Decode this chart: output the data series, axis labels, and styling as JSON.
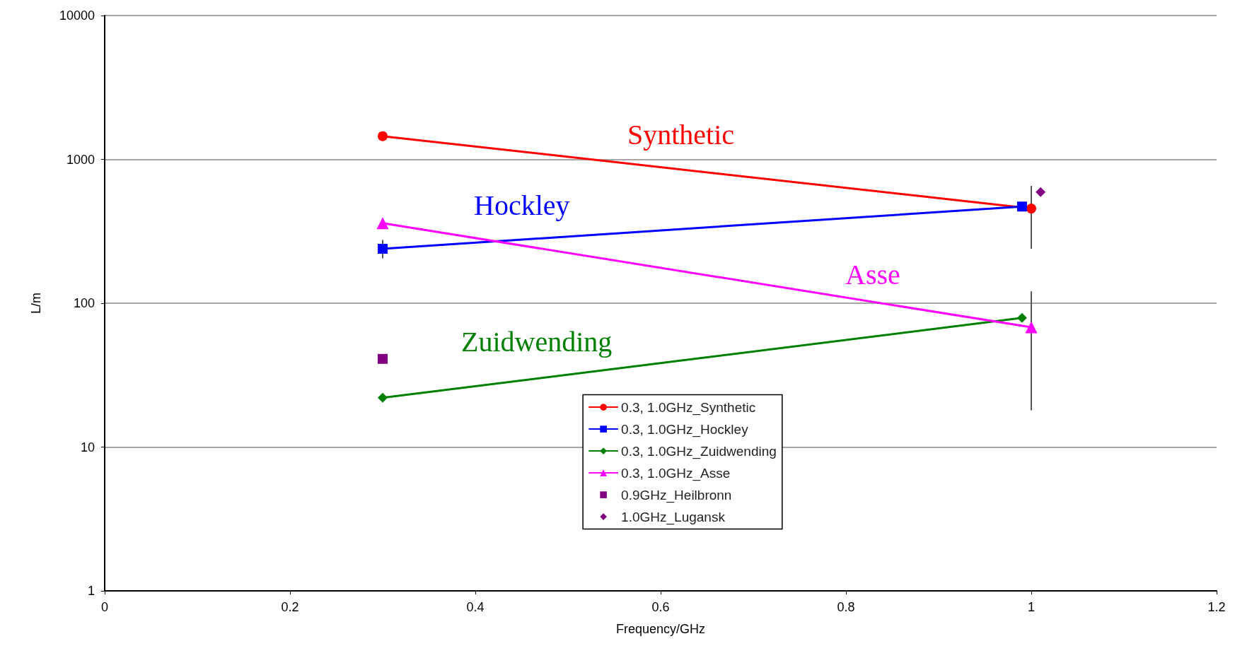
{
  "chart_data": {
    "type": "line",
    "xlabel": "Frequency/GHz",
    "ylabel": "L/m",
    "xlim": [
      0,
      1.2
    ],
    "xticks": [
      0,
      0.2,
      0.4,
      0.6,
      0.8,
      1,
      1.2
    ],
    "ylim": [
      1,
      10000
    ],
    "yticks": [
      1,
      10,
      100,
      1000,
      10000
    ],
    "log": "y",
    "grid": "y",
    "legend": "bottom",
    "line_style": "solid",
    "series": [
      {
        "name": "0.3, 1.0GHz_Synthetic",
        "color": "#ff0000",
        "marker": "circle",
        "x": [
          0.3,
          1.0
        ],
        "values": [
          1450,
          455
        ],
        "errors": [
          null,
          [
            239,
            655
          ]
        ]
      },
      {
        "name": "0.3, 1.0GHz_Hockley",
        "color": "#0000ff",
        "marker": "square",
        "x": [
          0.3,
          0.99
        ],
        "values": [
          239,
          470
        ],
        "errors": [
          [
            205,
            275
          ],
          null
        ]
      },
      {
        "name": "0.3, 1.0GHz_Zuidwending",
        "color": "#008000",
        "marker": "diamond",
        "x": [
          0.3,
          0.99
        ],
        "values": [
          22,
          79
        ]
      },
      {
        "name": "0.3, 1.0GHz_Asse",
        "color": "#ff00ff",
        "marker": "triangle",
        "x": [
          0.3,
          1.0
        ],
        "values": [
          360,
          68
        ],
        "errors": [
          null,
          [
            18,
            121
          ]
        ]
      },
      {
        "name": "0.9GHz_Heilbronn",
        "color": "#800080",
        "marker": "square",
        "type": "scatter",
        "x": [
          0.3
        ],
        "values": [
          41
        ]
      },
      {
        "name": "1.0GHz_Lugansk",
        "color": "#800080",
        "marker": "diamond",
        "type": "scatter",
        "x": [
          1.01
        ],
        "values": [
          593
        ]
      }
    ],
    "annotations": [
      "Synthetic",
      "Hockley",
      "Zuidwending",
      "Asse"
    ]
  }
}
